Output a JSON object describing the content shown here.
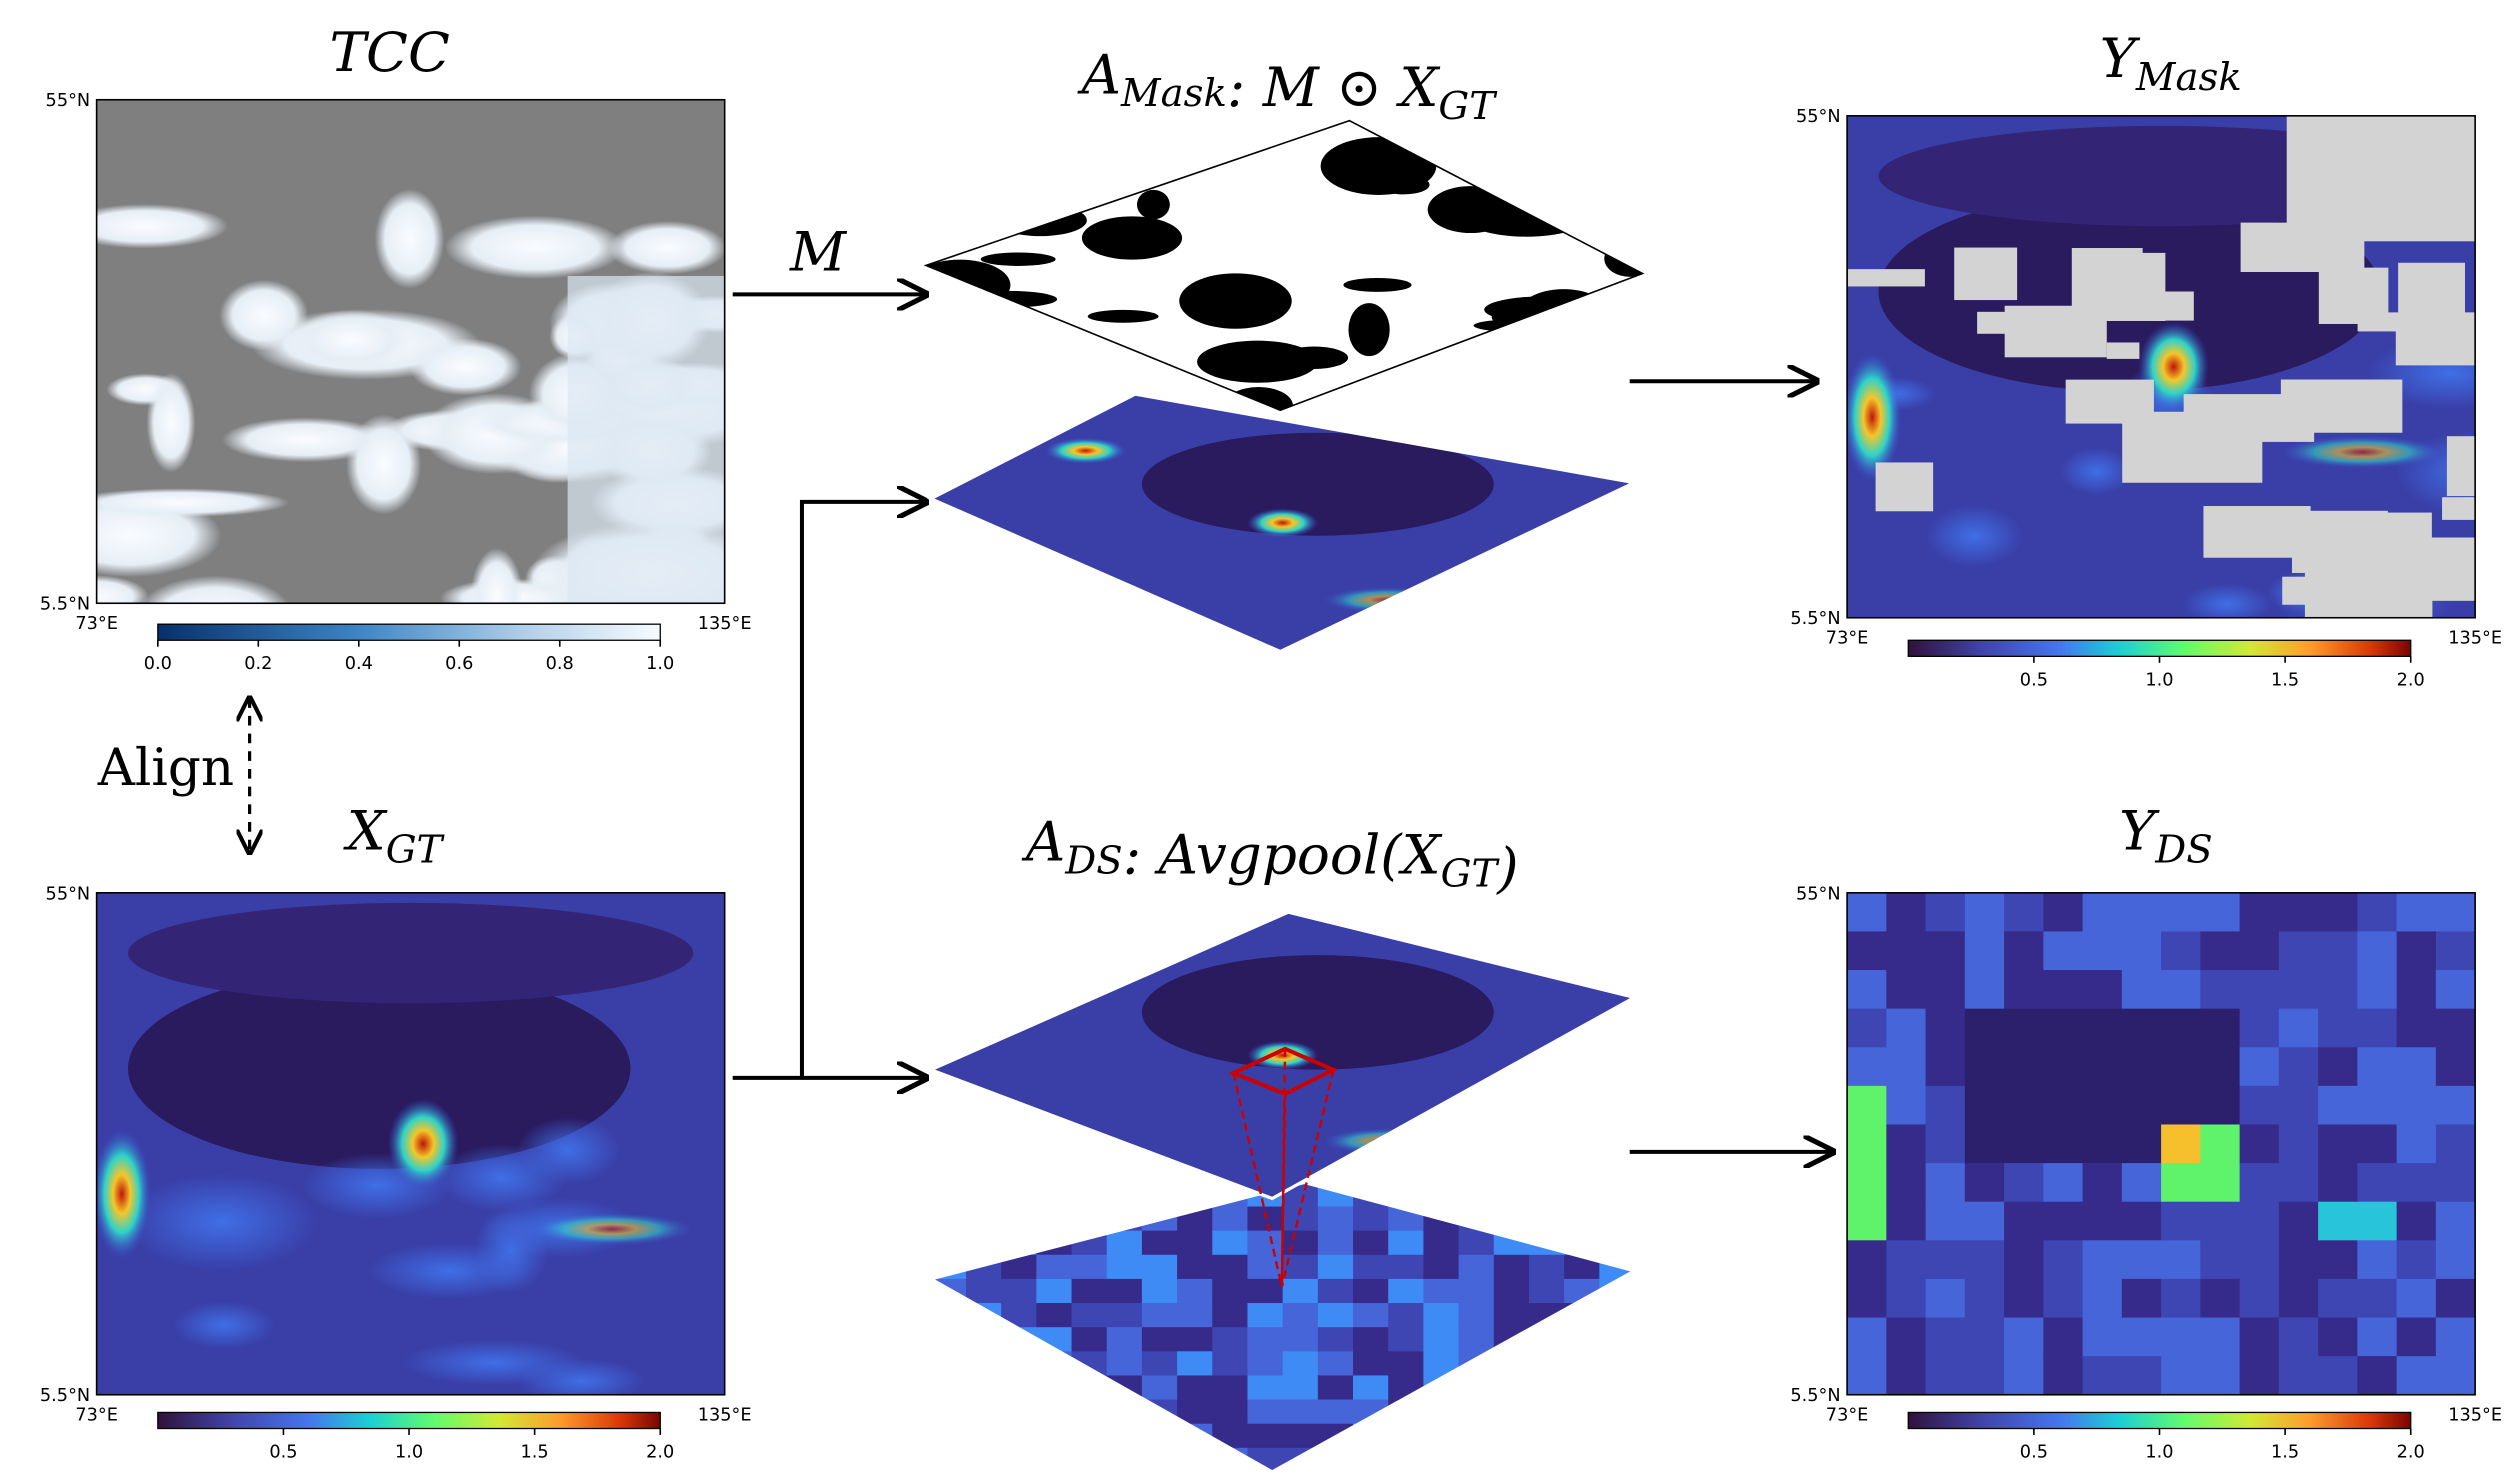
{
  "panels": {
    "tcc": {
      "title": [
        {
          "text": "TCC"
        }
      ],
      "lat_top": "55°N",
      "lat_bottom": "5.5°N",
      "lon_left": "73°E",
      "lon_right": "135°E",
      "colorbar_ticks": [
        "0.0",
        "0.2",
        "0.4",
        "0.6",
        "0.8",
        "1.0"
      ]
    },
    "x_gt": {
      "title": [
        {
          "text": "X",
          "sub": "GT"
        }
      ],
      "lat_top": "55°N",
      "lat_bottom": "5.5°N",
      "lon_left": "73°E",
      "lon_right": "135°E",
      "colorbar_ticks": [
        "0.5",
        "1.0",
        "1.5",
        "2.0"
      ]
    },
    "y_mask": {
      "title": [
        {
          "text": "Y",
          "sub": "Mask"
        }
      ],
      "lat_top": "55°N",
      "lat_bottom": "5.5°N",
      "lon_left": "73°E",
      "lon_right": "135°E",
      "colorbar_ticks": [
        "0.5",
        "1.0",
        "1.5",
        "2.0"
      ]
    },
    "y_ds": {
      "title": [
        {
          "text": "Y",
          "sub": "DS"
        }
      ],
      "lat_top": "55°N",
      "lat_bottom": "5.5°N",
      "lon_left": "73°E",
      "lon_right": "135°E",
      "colorbar_ticks": [
        "0.5",
        "1.0",
        "1.5",
        "2.0"
      ]
    },
    "a_mask": {
      "title": [
        {
          "text": "A",
          "sub": "Mask"
        },
        {
          "text": ": M ⊙ X",
          "sub": "GT"
        }
      ]
    },
    "a_ds": {
      "title": [
        {
          "text": "A",
          "sub": "DS"
        },
        {
          "text": ": Avgpool(X",
          "sub": "GT"
        },
        {
          "text": ")"
        }
      ]
    }
  },
  "labels": {
    "m": "M",
    "align": "Align"
  }
}
